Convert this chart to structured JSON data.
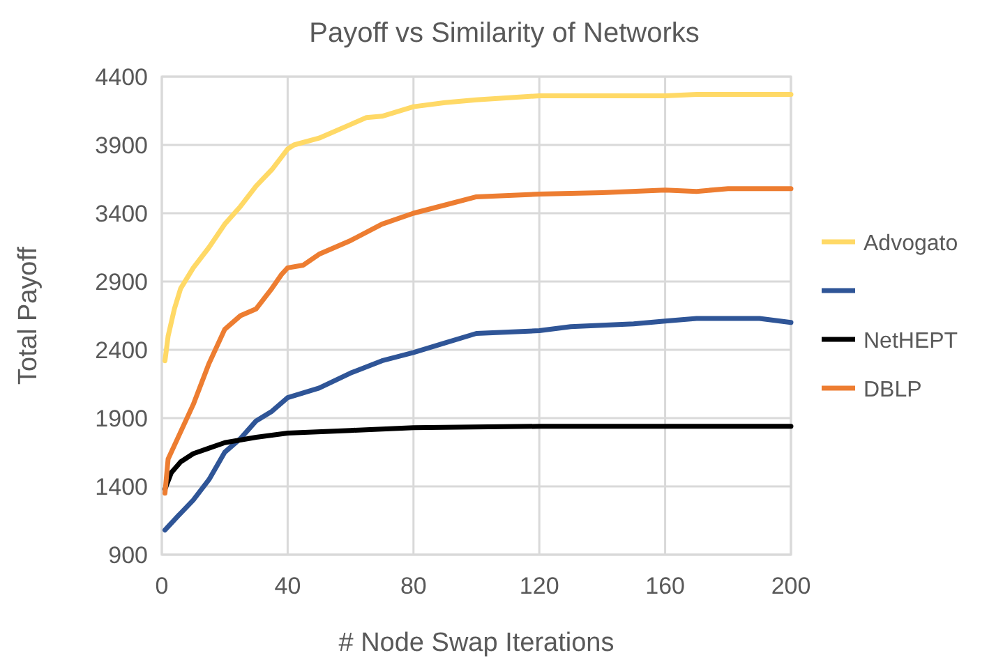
{
  "chart_data": {
    "type": "line",
    "title": "Payoff vs Similarity of Networks",
    "xlabel": "# Node Swap Iterations",
    "ylabel": "Total Payoff",
    "xlim": [
      0,
      200
    ],
    "xticks": [
      0,
      40,
      80,
      120,
      160,
      200
    ],
    "ylim": [
      900,
      4400
    ],
    "yticks": [
      900,
      1400,
      1900,
      2400,
      2900,
      3400,
      3900,
      4400
    ],
    "grid": true,
    "legend": "right",
    "marker": "none",
    "line_style": "solid",
    "series": [
      {
        "name": "Advogato",
        "color": "#ffd966",
        "x": [
          1,
          2,
          4,
          6,
          10,
          15,
          20,
          25,
          30,
          35,
          40,
          42,
          50,
          60,
          65,
          70,
          80,
          90,
          100,
          120,
          140,
          160,
          170,
          200
        ],
        "values": [
          2320,
          2500,
          2700,
          2850,
          3000,
          3150,
          3320,
          3450,
          3600,
          3720,
          3870,
          3900,
          3950,
          4050,
          4100,
          4110,
          4180,
          4210,
          4230,
          4260,
          4260,
          4260,
          4270,
          4270
        ]
      },
      {
        "color": "#2f5597",
        "x": [
          1,
          5,
          10,
          15,
          20,
          25,
          30,
          35,
          40,
          50,
          60,
          70,
          80,
          90,
          100,
          120,
          130,
          150,
          160,
          170,
          190,
          200
        ],
        "values": [
          1080,
          1180,
          1300,
          1450,
          1650,
          1750,
          1880,
          1950,
          2050,
          2120,
          2230,
          2320,
          2380,
          2450,
          2520,
          2540,
          2570,
          2590,
          2610,
          2630,
          2630,
          2600
        ]
      },
      {
        "name": "NetHEPT",
        "color": "#000000",
        "x": [
          1,
          3,
          6,
          10,
          15,
          20,
          30,
          40,
          60,
          80,
          120,
          200
        ],
        "values": [
          1380,
          1500,
          1580,
          1640,
          1680,
          1720,
          1760,
          1790,
          1810,
          1830,
          1840,
          1840
        ]
      },
      {
        "name": "DBLP",
        "color": "#ed7d31",
        "x": [
          1,
          2,
          5,
          10,
          15,
          20,
          25,
          30,
          35,
          38,
          40,
          45,
          50,
          60,
          70,
          80,
          90,
          100,
          120,
          140,
          160,
          170,
          180,
          200
        ],
        "values": [
          1350,
          1600,
          1750,
          2000,
          2300,
          2550,
          2650,
          2700,
          2850,
          2950,
          3000,
          3020,
          3100,
          3200,
          3320,
          3400,
          3460,
          3520,
          3540,
          3550,
          3570,
          3560,
          3580,
          3580
        ]
      }
    ]
  }
}
